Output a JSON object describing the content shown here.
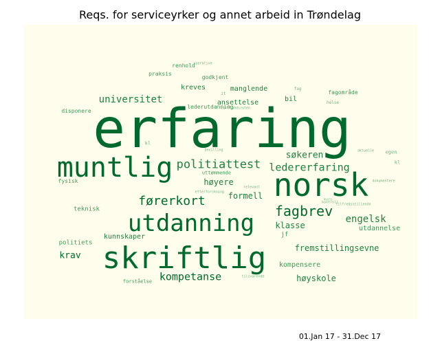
{
  "title": "Reqs. for serviceyrker og annet arbeid in Trøndelag",
  "date_range": "01.Jan 17 - 31.Dec 17",
  "colors": {
    "dark": "#00692e",
    "mid": "#1e8041",
    "light": "#3a9a58",
    "faint": "#70b684",
    "background": "#fffdeb"
  },
  "words": [
    "erfaring",
    "muntlig",
    "norsk",
    "skriftlig",
    "utdanning",
    "fagbrev",
    "førerkort",
    "politiattest",
    "ledererfaring",
    "søkeren",
    "universitet",
    "engelsk",
    "kompetanse",
    "høyere",
    "formell",
    "klasse",
    "fremstillingsevne",
    "krav",
    "høyskole",
    "kompensere",
    "kunnskaper",
    "utdannelse",
    "ansettelse",
    "manglende",
    "kreves",
    "bil",
    "teknisk",
    "politiets",
    "jf",
    "lederutdanning",
    "fagområde",
    "praksis",
    "renhold",
    "godkjent",
    "disponere",
    "fysisk",
    "forståelse",
    "uttømmende",
    "egen",
    "helse",
    "fag",
    "kl",
    "it",
    "operative",
    "nordlandsruten",
    "kl",
    "dokumentere",
    "etterforskning",
    "tilfredsstillende",
    "aktuelle",
    "bevilling",
    "relevant",
    "kurs",
    "kontroll",
    "tilsvarende"
  ]
}
